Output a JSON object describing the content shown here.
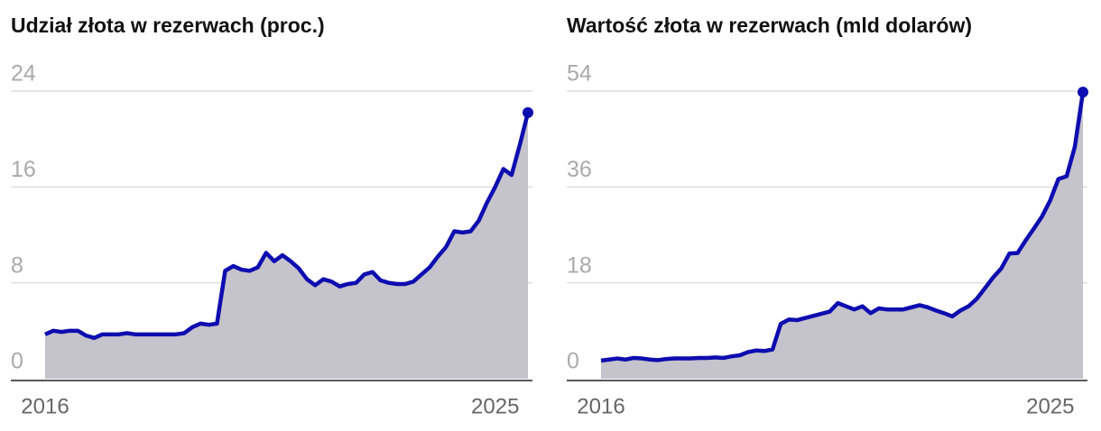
{
  "chart_data": [
    {
      "type": "area",
      "title": "Udział złota w rezerwach (proc.)",
      "categories": [
        "2016",
        null,
        null,
        null,
        null,
        null,
        null,
        null,
        null,
        null,
        null,
        null,
        null,
        null,
        null,
        null,
        null,
        null,
        null,
        null,
        null,
        null,
        null,
        null,
        null,
        null,
        null,
        null,
        null,
        null,
        null,
        null,
        null,
        null,
        null,
        null,
        null,
        null,
        null,
        null,
        null,
        null,
        null,
        null,
        null,
        null,
        null,
        null,
        null,
        null,
        null,
        null,
        null,
        null,
        null,
        "2025",
        null,
        null,
        null,
        null
      ],
      "series": [
        {
          "name": null,
          "color": "#0d0db0",
          "values": [
            3.7,
            4.0,
            3.9,
            4.0,
            4.0,
            3.6,
            3.4,
            3.7,
            3.7,
            3.7,
            3.8,
            3.7,
            3.7,
            3.7,
            3.7,
            3.7,
            3.7,
            3.8,
            4.3,
            4.6,
            4.5,
            4.6,
            9.0,
            9.4,
            9.1,
            9.0,
            9.3,
            10.5,
            9.8,
            10.3,
            9.8,
            9.2,
            8.3,
            7.8,
            8.3,
            8.1,
            7.7,
            7.9,
            8.0,
            8.7,
            8.9,
            8.2,
            8.0,
            7.9,
            7.9,
            8.1,
            8.7,
            9.3,
            10.2,
            11.0,
            12.3,
            12.2,
            12.3,
            13.2,
            14.7,
            16.0,
            17.5,
            17.0,
            19.5,
            22.2
          ]
        }
      ],
      "area_color": "#c5c3cb",
      "ylim": [
        0,
        24
      ],
      "yticks": [
        0,
        8,
        16,
        24
      ],
      "grid": true
    },
    {
      "type": "area",
      "title": "Wartość złota w rezerwach (mld dolarów)",
      "categories": [
        "2016",
        null,
        null,
        null,
        null,
        null,
        null,
        null,
        null,
        null,
        null,
        null,
        null,
        null,
        null,
        null,
        null,
        null,
        null,
        null,
        null,
        null,
        null,
        null,
        null,
        null,
        null,
        null,
        null,
        null,
        null,
        null,
        null,
        null,
        null,
        null,
        null,
        null,
        null,
        null,
        null,
        null,
        null,
        null,
        null,
        null,
        null,
        null,
        null,
        null,
        null,
        null,
        null,
        null,
        null,
        "2025",
        null,
        null,
        null,
        null
      ],
      "series": [
        {
          "name": null,
          "color": "#0d0db0",
          "values": [
            3.4,
            3.6,
            3.8,
            3.6,
            3.9,
            3.8,
            3.6,
            3.5,
            3.7,
            3.8,
            3.8,
            3.8,
            3.9,
            3.9,
            4.0,
            3.9,
            4.2,
            4.4,
            5.0,
            5.3,
            5.2,
            5.5,
            10.3,
            11.1,
            11.0,
            11.4,
            11.8,
            12.2,
            12.6,
            14.2,
            13.6,
            13.0,
            13.6,
            12.3,
            13.2,
            13.0,
            13.0,
            13.0,
            13.4,
            13.8,
            13.4,
            12.8,
            12.3,
            11.7,
            12.8,
            13.6,
            15.0,
            17.0,
            19.0,
            20.7,
            23.5,
            23.6,
            26.0,
            28.2,
            30.5,
            33.5,
            37.5,
            38.0,
            43.5,
            53.8
          ]
        }
      ],
      "area_color": "#c5c3cb",
      "ylim": [
        0,
        54
      ],
      "yticks": [
        0,
        18,
        36,
        54
      ],
      "grid": true
    }
  ]
}
